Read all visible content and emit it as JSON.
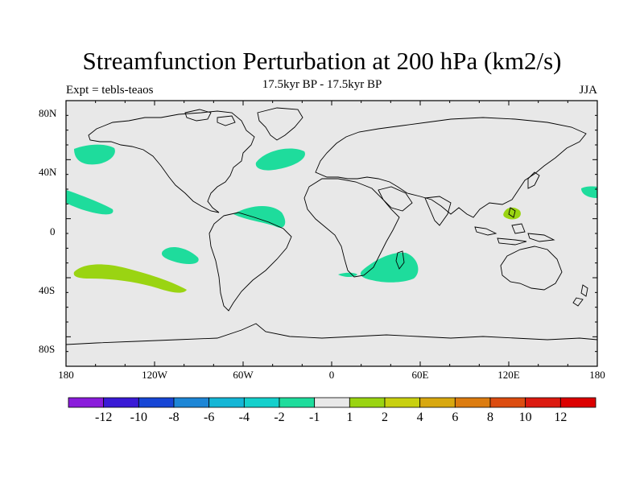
{
  "title": "Streamfunction Perturbation at 200 hPa (km2/s)",
  "subtitle": "17.5kyr BP - 17.5kyr BP",
  "left_label": "Expt = tebls-teaos",
  "right_label": "JJA",
  "y_ticks": [
    "80N",
    "40N",
    "0",
    "40S",
    "80S"
  ],
  "x_ticks": [
    "180",
    "120W",
    "60W",
    "0",
    "60E",
    "120E",
    "180"
  ],
  "colorbar": {
    "labels": [
      "-12",
      "-10",
      "-8",
      "-6",
      "-4",
      "-2",
      "-1",
      "1",
      "2",
      "4",
      "6",
      "8",
      "10",
      "12"
    ],
    "colors": [
      "#8a1cdb",
      "#3a1ad6",
      "#1746d6",
      "#1d86d6",
      "#14b6d6",
      "#14d0cc",
      "#1edc9c",
      "#e8e8e8",
      "#9ad412",
      "#c8d010",
      "#d8a810",
      "#dc7c10",
      "#dc4c10",
      "#dc1a10",
      "#dc0000"
    ]
  },
  "map": {
    "ocean_color": "#e8e8e8",
    "negative_color": "#1edc9c",
    "positive_color": "#9ad412"
  }
}
